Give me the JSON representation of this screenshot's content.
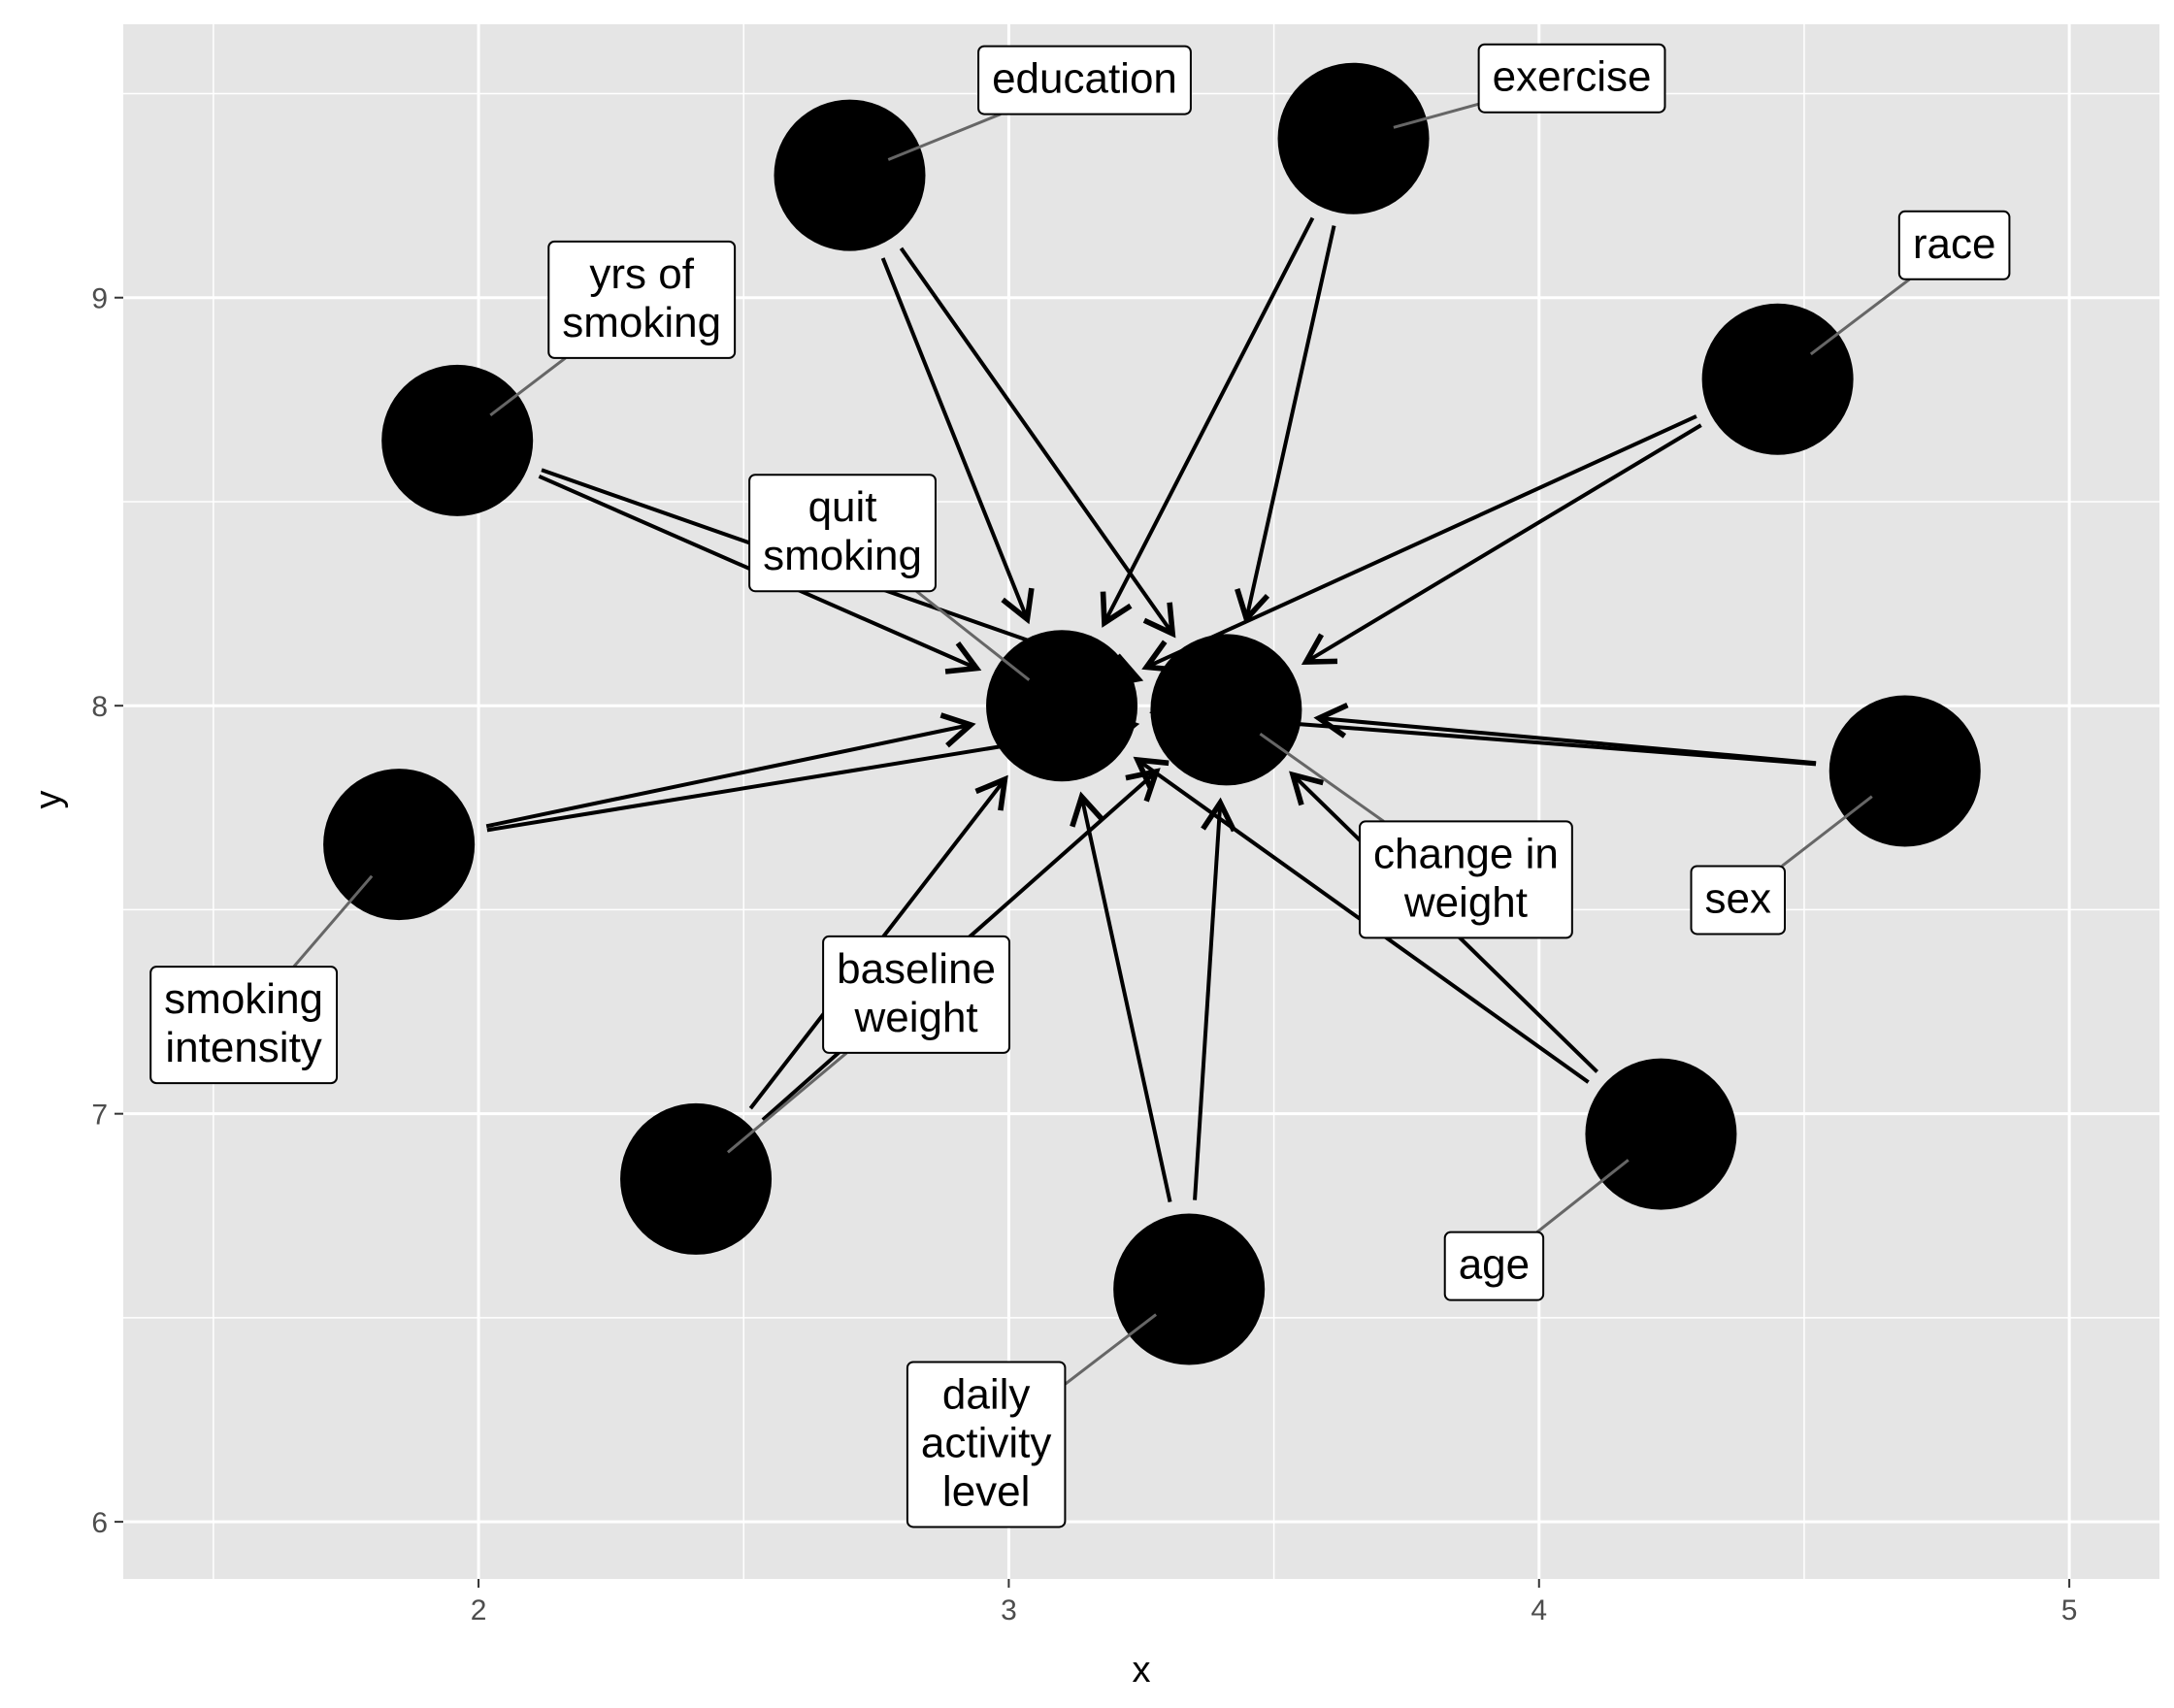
{
  "chart_data": {
    "type": "diagram",
    "xlabel": "x",
    "ylabel": "y",
    "xlim": [
      1.33,
      5.17
    ],
    "ylim": [
      5.86,
      9.67
    ],
    "x_ticks": [
      "2",
      "3",
      "4",
      "5"
    ],
    "y_ticks": [
      "6",
      "7",
      "8",
      "9"
    ],
    "nodes": [
      {
        "id": "yrs_smoking",
        "label": [
          "yrs of",
          "smoking"
        ],
        "x": 1.96,
        "y": 8.65
      },
      {
        "id": "education",
        "label": [
          "education"
        ],
        "x": 2.7,
        "y": 9.3
      },
      {
        "id": "exercise",
        "label": [
          "exercise"
        ],
        "x": 3.65,
        "y": 9.39
      },
      {
        "id": "race",
        "label": [
          "race"
        ],
        "x": 4.45,
        "y": 8.8
      },
      {
        "id": "quit_smoking",
        "label": [
          "quit",
          "smoking"
        ],
        "x": 3.1,
        "y": 8.0
      },
      {
        "id": "change_weight",
        "label": [
          "change in",
          "weight"
        ],
        "x": 3.41,
        "y": 7.99
      },
      {
        "id": "smoking_intensity",
        "label": [
          "smoking",
          "intensity"
        ],
        "x": 1.85,
        "y": 7.66
      },
      {
        "id": "sex",
        "label": [
          "sex"
        ],
        "x": 4.69,
        "y": 7.84
      },
      {
        "id": "baseline_weight",
        "label": [
          "baseline",
          "weight"
        ],
        "x": 2.41,
        "y": 6.84
      },
      {
        "id": "daily_activity",
        "label": [
          "daily",
          "activity",
          "level"
        ],
        "x": 3.34,
        "y": 6.57
      },
      {
        "id": "age",
        "label": [
          "age"
        ],
        "x": 4.23,
        "y": 6.95
      }
    ],
    "edges": [
      {
        "from": "yrs_smoking",
        "to": "quit_smoking"
      },
      {
        "from": "yrs_smoking",
        "to": "change_weight"
      },
      {
        "from": "education",
        "to": "quit_smoking"
      },
      {
        "from": "education",
        "to": "change_weight"
      },
      {
        "from": "exercise",
        "to": "quit_smoking"
      },
      {
        "from": "exercise",
        "to": "change_weight"
      },
      {
        "from": "race",
        "to": "quit_smoking"
      },
      {
        "from": "race",
        "to": "change_weight"
      },
      {
        "from": "smoking_intensity",
        "to": "quit_smoking"
      },
      {
        "from": "smoking_intensity",
        "to": "change_weight"
      },
      {
        "from": "sex",
        "to": "quit_smoking"
      },
      {
        "from": "sex",
        "to": "change_weight"
      },
      {
        "from": "baseline_weight",
        "to": "quit_smoking"
      },
      {
        "from": "baseline_weight",
        "to": "change_weight"
      },
      {
        "from": "daily_activity",
        "to": "quit_smoking"
      },
      {
        "from": "daily_activity",
        "to": "change_weight"
      },
      {
        "from": "age",
        "to": "quit_smoking"
      },
      {
        "from": "age",
        "to": "change_weight"
      }
    ]
  }
}
